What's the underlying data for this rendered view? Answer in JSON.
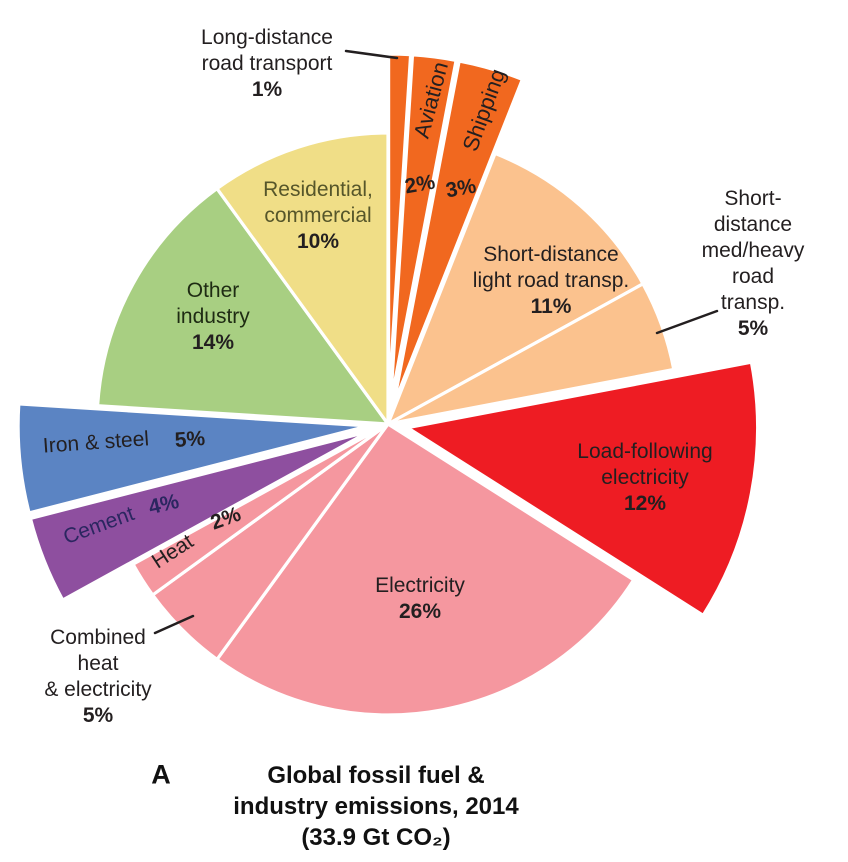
{
  "chart_data": {
    "type": "pie",
    "panel_label": "A",
    "title": "Global fossil fuel & industry emissions, 2014 (33.9 Gt CO₂)",
    "title_display": "Global fossil fuel &\nindustry emissions, 2014\n(33.9 Gt CO₂)",
    "total_label": "33.9 Gt CO₂",
    "year": "2014",
    "units": "%",
    "start_angle_deg": 0,
    "direction": "clockwise",
    "background": "#ffffff",
    "slice_stroke_color": "#ffffff",
    "slices": [
      {
        "id": "long-distance-road-transport",
        "name": "Long-distance road transport",
        "value": 1,
        "pct_label": "1%",
        "color": "#f1681f",
        "exploded": true,
        "label": "Long-distance\nroad transport"
      },
      {
        "id": "aviation",
        "name": "Aviation",
        "value": 2,
        "pct_label": "2%",
        "color": "#f1681f",
        "exploded": true,
        "label": "Aviation"
      },
      {
        "id": "shipping",
        "name": "Shipping",
        "value": 3,
        "pct_label": "3%",
        "color": "#f1681f",
        "exploded": true,
        "label": "Shipping"
      },
      {
        "id": "short-distance-light-road",
        "name": "Short-distance light road transp.",
        "value": 11,
        "pct_label": "11%",
        "color": "#fbc28e",
        "exploded": false,
        "label": "Short-distance\nlight road transp."
      },
      {
        "id": "short-distance-med-heavy-road",
        "name": "Short-distance med/heavy road transp.",
        "value": 5,
        "pct_label": "5%",
        "color": "#fbc28e",
        "exploded": false,
        "label": "Short-distance\nmed/heavy\nroad transp."
      },
      {
        "id": "load-following-electricity",
        "name": "Load-following electricity",
        "value": 12,
        "pct_label": "12%",
        "color": "#ee1c23",
        "exploded": true,
        "label": "Load-following\nelectricity"
      },
      {
        "id": "electricity",
        "name": "Electricity",
        "value": 26,
        "pct_label": "26%",
        "color": "#f5979f",
        "exploded": false,
        "label": "Electricity"
      },
      {
        "id": "combined-heat-electricity",
        "name": "Combined heat & electricity",
        "value": 5,
        "pct_label": "5%",
        "color": "#f5979f",
        "exploded": false,
        "label": "Combined\nheat\n& electricity"
      },
      {
        "id": "heat",
        "name": "Heat",
        "value": 2,
        "pct_label": "2%",
        "color": "#f5979f",
        "exploded": false,
        "label": "Heat"
      },
      {
        "id": "cement",
        "name": "Cement",
        "value": 4,
        "pct_label": "4%",
        "color": "#8e4f9f",
        "exploded": true,
        "label": "Cement"
      },
      {
        "id": "iron-steel",
        "name": "Iron & steel",
        "value": 5,
        "pct_label": "5%",
        "color": "#5b84c3",
        "exploded": true,
        "label": "Iron & steel"
      },
      {
        "id": "other-industry",
        "name": "Other industry",
        "value": 14,
        "pct_label": "14%",
        "color": "#a8cf82",
        "exploded": false,
        "label": "Other\nindustry"
      },
      {
        "id": "residential-commercial",
        "name": "Residential, commercial",
        "value": 10,
        "pct_label": "10%",
        "color": "#f0de87",
        "exploded": false,
        "label": "Residential,\ncommercial"
      }
    ]
  }
}
